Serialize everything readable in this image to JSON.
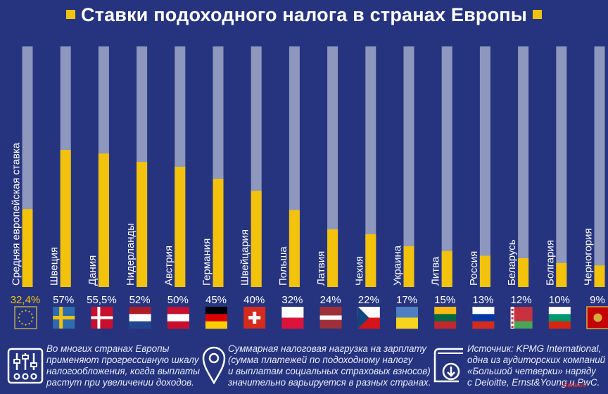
{
  "title": "Ставки подоходного налога в странах Европы",
  "colors": {
    "background": "#26347f",
    "fill": "#f2c20c",
    "track": "#8e97bd",
    "highlight_label": "#f2c20c",
    "text": "#ffffff"
  },
  "chart_data": {
    "type": "bar",
    "orientation": "vertical",
    "title": "Ставки подоходного налога в странах Европы",
    "xlabel": "",
    "ylabel": "",
    "ylim": [
      0,
      100
    ],
    "grid": false,
    "categories": [
      "Средняя европейская ставка",
      "Швеция",
      "Дания",
      "Нидерланды",
      "Австрия",
      "Германия",
      "Швейцария",
      "Польша",
      "Латвия",
      "Чехия",
      "Украина",
      "Литва",
      "Россия",
      "Беларусь",
      "Болгария",
      "Черногория"
    ],
    "values": [
      32.4,
      57,
      55.5,
      52,
      50,
      45,
      40,
      32,
      24,
      22,
      17,
      15,
      13,
      12,
      10,
      9
    ],
    "value_labels": [
      "32,4%",
      "57%",
      "55,5%",
      "52%",
      "50%",
      "45%",
      "40%",
      "32%",
      "24%",
      "22%",
      "17%",
      "15%",
      "13%",
      "12%",
      "10%",
      "9%"
    ],
    "flags": [
      "eu-flag",
      "sweden-flag",
      "denmark-flag",
      "netherlands-flag",
      "austria-flag",
      "germany-flag",
      "switzerland-flag",
      "poland-flag",
      "latvia-flag",
      "czechia-flag",
      "ukraine-flag",
      "lithuania-flag",
      "russia-flag",
      "belarus-flag",
      "bulgaria-flag",
      "montenegro-flag"
    ]
  },
  "footer": {
    "notes": [
      {
        "icon": "sliders-icon",
        "lines": [
          "Во многих странах Европы",
          "применяют прогрессивную шкалу",
          "налогообложения, когда выплаты",
          "растут при увеличении доходов."
        ]
      },
      {
        "icon": "map-pin-icon",
        "lines": [
          "Суммарная налоговая нагрузка на зарплату",
          "(сумма платежей по подоходному налогу",
          "и выплатам социальных страховых взносов)",
          "значительно варьируется в разных странах."
        ]
      },
      {
        "icon": "book-download-icon",
        "lines": [
          "Источник: KPMG International,",
          "одна из аудиторских компаний",
          "«Большой четверки» наряду",
          "с Deloitte, Ernst&Young и PwC."
        ]
      }
    ]
  },
  "watermark": "Belarus"
}
